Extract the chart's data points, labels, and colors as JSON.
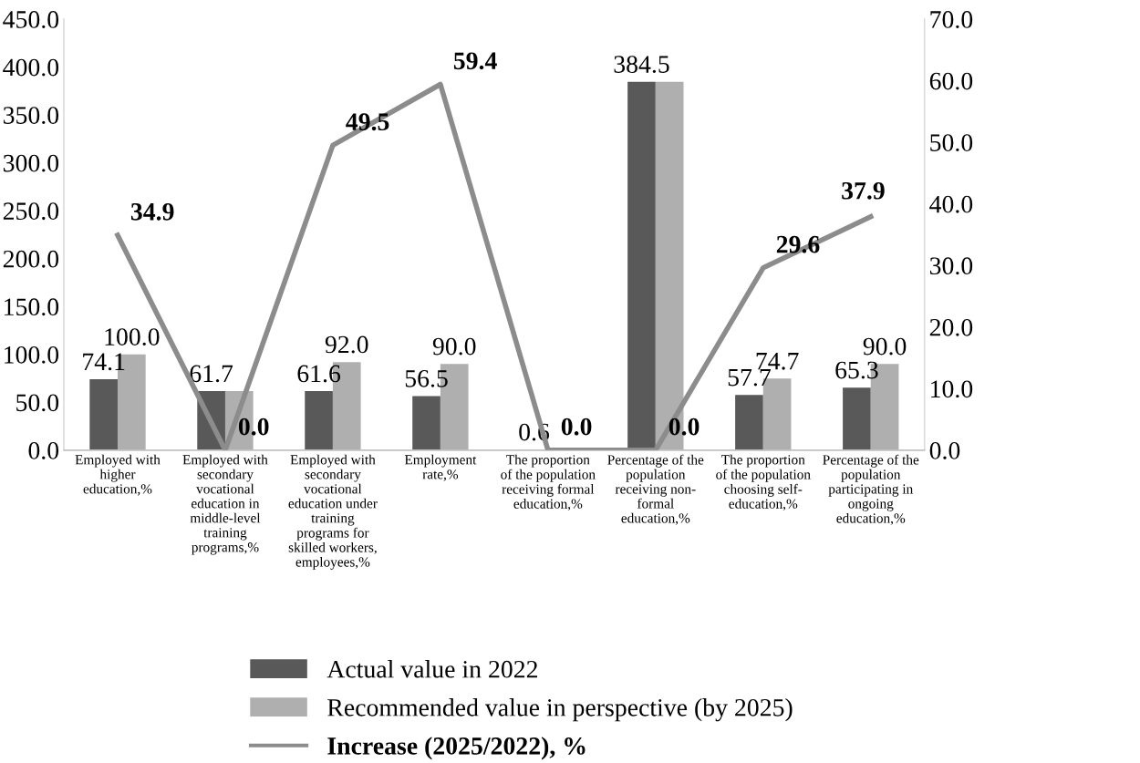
{
  "chart_data": {
    "type": "bar",
    "categories": [
      "Employed with\nhigher\neducation,%",
      "Employed with\nsecondary\nvocational\neducation in\nmiddle-level\ntraining\nprograms,%",
      "Employed with\nsecondary\nvocational\neducation under\ntraining\nprograms for\nskilled workers,\nemployees,%",
      "Employment\nrate,%",
      "The proportion\nof the population\nreceiving formal\neducation,%",
      "Percentage of the\npopulation\nreceiving non-\nformal\neducation,%",
      "The proportion\nof the population\nchoosing self-\neducation,%",
      "Percentage of the\npopulation\nparticipating in\nongoing\neducation,%"
    ],
    "series": [
      {
        "name": "Actual value in 2022",
        "color": "#595959",
        "values": [
          74.1,
          61.7,
          61.6,
          56.5,
          0.6,
          384.5,
          57.7,
          65.3
        ],
        "value_labels": [
          "74.1",
          "61.7",
          "61.6",
          "56.5",
          "0.6",
          "384.5",
          "57.7",
          "65.3"
        ]
      },
      {
        "name": "Recommended value in perspective (by 2025)",
        "color": "#afafaf",
        "values": [
          100.0,
          61.7,
          92.0,
          90.0,
          0.6,
          384.5,
          74.7,
          90.0
        ],
        "value_labels": [
          "100.0",
          null,
          "92.0",
          "90.0",
          null,
          null,
          "74.7",
          "90.0"
        ]
      },
      {
        "name": "Increase (2025/2022), %",
        "type": "line",
        "axis": "y2",
        "color": "#8c8c8c",
        "values": [
          34.9,
          0.0,
          49.5,
          59.4,
          0.0,
          0.0,
          29.6,
          37.9
        ],
        "value_labels": [
          "34.9",
          "0.0",
          "49.5",
          "59.4",
          "0.0",
          "0.0",
          "29.6",
          "37.9"
        ]
      }
    ],
    "ylim": [
      0,
      450
    ],
    "yticks": [
      {
        "value": 0,
        "label": "0.0"
      },
      {
        "value": 50,
        "label": "50.0"
      },
      {
        "value": 100,
        "label": "100.0"
      },
      {
        "value": 150,
        "label": "150.0"
      },
      {
        "value": 200,
        "label": "200.0"
      },
      {
        "value": 250,
        "label": "250.0"
      },
      {
        "value": 300,
        "label": "300.0"
      },
      {
        "value": 350,
        "label": "350.0"
      },
      {
        "value": 400,
        "label": "400.0"
      },
      {
        "value": 450,
        "label": "450.0"
      }
    ],
    "y2lim": [
      0,
      70
    ],
    "y2ticks": [
      {
        "value": 0,
        "label": "0.0"
      },
      {
        "value": 10,
        "label": "10.0"
      },
      {
        "value": 20,
        "label": "20.0"
      },
      {
        "value": 30,
        "label": "30.0"
      },
      {
        "value": 40,
        "label": "40.0"
      },
      {
        "value": 50,
        "label": "50.0"
      },
      {
        "value": 60,
        "label": "60.0"
      },
      {
        "value": 70,
        "label": "70.0"
      }
    ],
    "grid": false,
    "legend": "bottom"
  }
}
